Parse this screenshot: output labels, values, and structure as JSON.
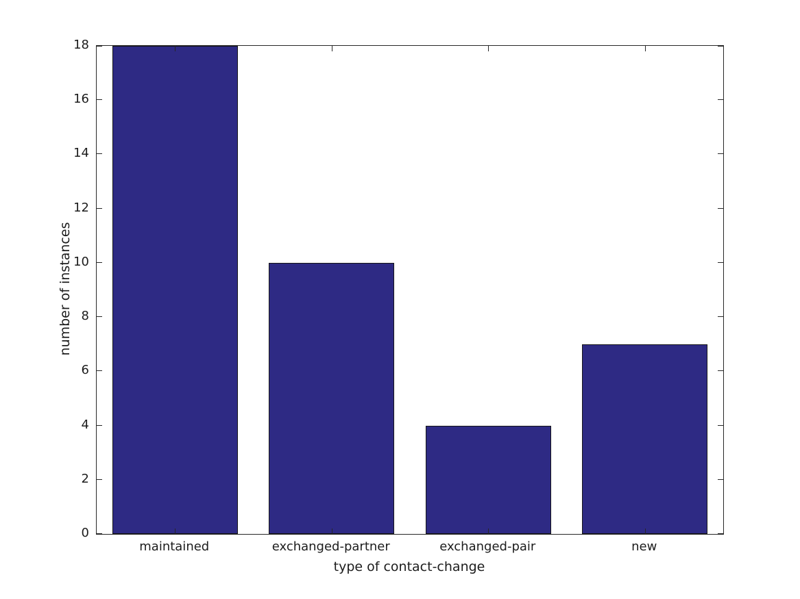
{
  "chart_data": {
    "type": "bar",
    "categories": [
      "maintained",
      "exchanged-partner",
      "exchanged-pair",
      "new"
    ],
    "values": [
      18,
      10,
      4,
      7
    ],
    "title": "",
    "xlabel": "type of contact-change",
    "ylabel": "number of instances",
    "ylim": [
      0,
      18
    ],
    "ytick_step": 2,
    "ytick_labels": [
      "0",
      "2",
      "4",
      "6",
      "8",
      "10",
      "12",
      "14",
      "16",
      "18"
    ],
    "bar_width_fraction": 0.8,
    "grid": false,
    "legend_position": "none",
    "colors": {
      "bar_fill": "#2e2a84",
      "bar_edge": "#151515",
      "axis_frame": "#262626",
      "text": "#1c1c1c",
      "background": "#ffffff"
    }
  }
}
